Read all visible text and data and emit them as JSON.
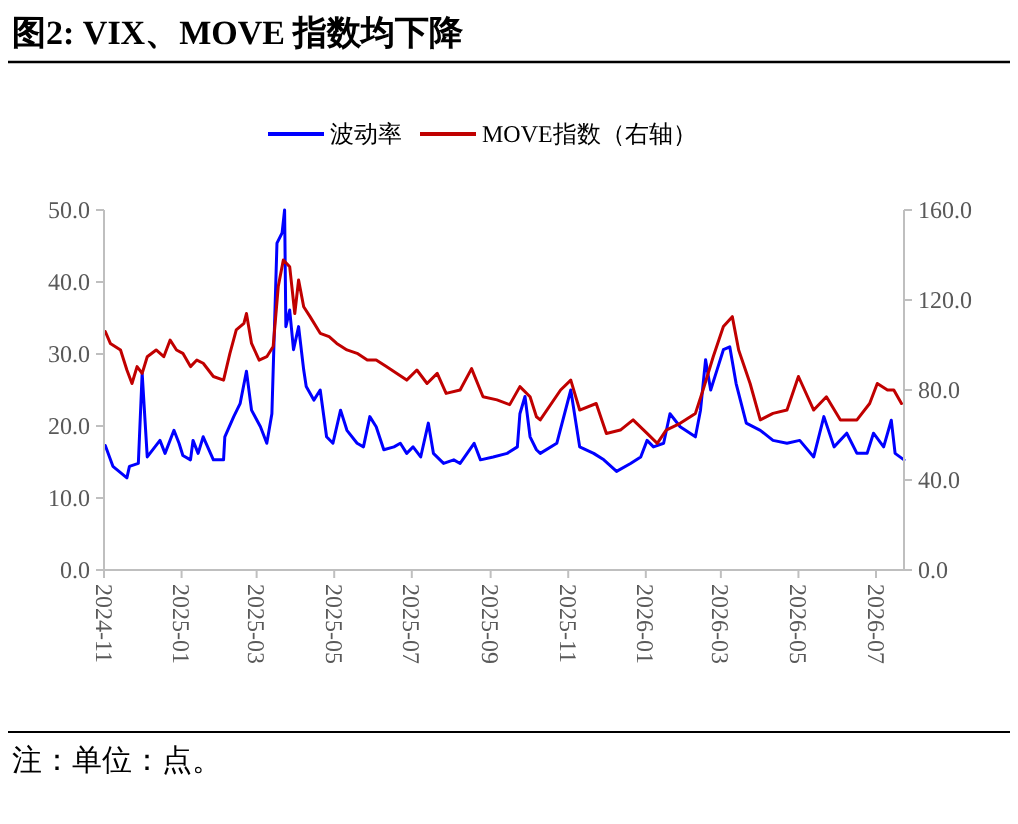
{
  "chart_data": {
    "type": "line",
    "title": "图2:  VIX、MOVE 指数均下降",
    "annotations": [
      "注：单位：点。"
    ],
    "legend": "top",
    "grid": false,
    "marker": "none",
    "line_style": "solid",
    "xlim": [
      "2024-11-01",
      "2026-07-23"
    ],
    "xticks": [
      {
        "value": "2024-11-01",
        "label": "2024-11"
      },
      {
        "value": "2025-01-01",
        "label": "2025-01"
      },
      {
        "value": "2025-03-01",
        "label": "2025-03"
      },
      {
        "value": "2025-05-01",
        "label": "2025-05"
      },
      {
        "value": "2025-07-01",
        "label": "2025-07"
      },
      {
        "value": "2025-09-01",
        "label": "2025-09"
      },
      {
        "value": "2025-11-01",
        "label": "2025-11"
      },
      {
        "value": "2026-01-01",
        "label": "2026-01"
      },
      {
        "value": "2026-03-01",
        "label": "2026-03"
      },
      {
        "value": "2026-05-01",
        "label": "2026-05"
      },
      {
        "value": "2026-07-01",
        "label": "2026-07"
      }
    ],
    "ylim": [
      0,
      50
    ],
    "yticks": [
      {
        "value": 0,
        "label": "0.0"
      },
      {
        "value": 10,
        "label": "10.0"
      },
      {
        "value": 20,
        "label": "20.0"
      },
      {
        "value": 30,
        "label": "30.0"
      },
      {
        "value": 40,
        "label": "40.0"
      },
      {
        "value": 50,
        "label": "50.0"
      }
    ],
    "y2lim": [
      0,
      160
    ],
    "y2ticks": [
      {
        "value": 0,
        "label": "0.0"
      },
      {
        "value": 40,
        "label": "40.0"
      },
      {
        "value": 80,
        "label": "80.0"
      },
      {
        "value": 120,
        "label": "120.0"
      },
      {
        "value": 160,
        "label": "160.0"
      }
    ],
    "series": [
      {
        "name": "波动率",
        "color": "#0000ff",
        "x": [
          "2024-11-02",
          "2024-11-08",
          "2024-11-19",
          "2024-11-21",
          "2024-11-28",
          "2024-12-01",
          "2024-12-05",
          "2024-12-15",
          "2024-12-19",
          "2024-12-26",
          "2024-12-30",
          "2025-01-02",
          "2025-01-08",
          "2025-01-10",
          "2025-01-14",
          "2025-01-18",
          "2025-01-26",
          "2025-02-03",
          "2025-02-04",
          "2025-02-11",
          "2025-02-16",
          "2025-02-21",
          "2025-02-25",
          "2025-03-04",
          "2025-03-09",
          "2025-03-13",
          "2025-03-17",
          "2025-03-21",
          "2025-03-23",
          "2025-03-24",
          "2025-03-27",
          "2025-03-30",
          "2025-04-03",
          "2025-04-07",
          "2025-04-09",
          "2025-04-15",
          "2025-04-20",
          "2025-04-25",
          "2025-04-30",
          "2025-05-06",
          "2025-05-11",
          "2025-05-19",
          "2025-05-24",
          "2025-05-29",
          "2025-06-03",
          "2025-06-09",
          "2025-06-17",
          "2025-06-22",
          "2025-06-27",
          "2025-07-02",
          "2025-07-08",
          "2025-07-14",
          "2025-07-18",
          "2025-07-26",
          "2025-08-03",
          "2025-08-08",
          "2025-08-19",
          "2025-08-24",
          "2025-09-03",
          "2025-09-14",
          "2025-09-22",
          "2025-09-24",
          "2025-09-28",
          "2025-10-02",
          "2025-10-07",
          "2025-10-10",
          "2025-10-23",
          "2025-11-03",
          "2025-11-10",
          "2025-11-21",
          "2025-11-29",
          "2025-12-09",
          "2025-12-20",
          "2025-12-28",
          "2026-01-02",
          "2026-01-07",
          "2026-01-15",
          "2026-01-20",
          "2026-01-28",
          "2026-02-09",
          "2026-02-13",
          "2026-02-17",
          "2026-02-21",
          "2026-02-26",
          "2026-03-03",
          "2026-03-08",
          "2026-03-13",
          "2026-03-21",
          "2026-04-01",
          "2026-04-11",
          "2026-04-22",
          "2026-05-02",
          "2026-05-13",
          "2026-05-21",
          "2026-05-29",
          "2026-06-08",
          "2026-06-16",
          "2026-06-24",
          "2026-06-29",
          "2026-07-07",
          "2026-07-13",
          "2026-07-16",
          "2026-07-23"
        ],
        "values": [
          17.3,
          14.4,
          12.8,
          14.4,
          14.8,
          27.3,
          15.7,
          18,
          16.2,
          19.4,
          17.6,
          15.9,
          15.3,
          18,
          16.2,
          18.5,
          15.3,
          15.3,
          18.5,
          21.3,
          23.1,
          27.6,
          22.2,
          19.9,
          17.6,
          21.7,
          45.4,
          46.8,
          50,
          33.8,
          36.1,
          30.6,
          33.8,
          27.8,
          25.5,
          23.6,
          25,
          18.5,
          17.6,
          22.2,
          19.4,
          17.6,
          17.1,
          21.3,
          19.9,
          16.7,
          17.1,
          17.6,
          16.2,
          17.1,
          15.7,
          20.4,
          16.2,
          14.8,
          15.3,
          14.8,
          17.6,
          15.3,
          15.7,
          16.2,
          17.1,
          21.7,
          24.1,
          18.5,
          16.7,
          16.2,
          17.6,
          25,
          17.1,
          16.2,
          15.3,
          13.7,
          14.8,
          15.7,
          18,
          17.1,
          17.6,
          21.7,
          19.9,
          18.5,
          22.2,
          29.2,
          25,
          27.8,
          30.6,
          31,
          25.9,
          20.4,
          19.4,
          18,
          17.6,
          18,
          15.7,
          21.3,
          17.1,
          19,
          16.2,
          16.2,
          19,
          17.1,
          20.8,
          16.2,
          15.3
        ]
      },
      {
        "name": "MOVE指数（右轴）",
        "color": "#c00000",
        "axis": "y2",
        "x": [
          "2024-11-02",
          "2024-11-06",
          "2024-11-14",
          "2024-11-19",
          "2024-11-23",
          "2024-11-27",
          "2024-12-01",
          "2024-12-05",
          "2024-12-12",
          "2024-12-18",
          "2024-12-23",
          "2024-12-28",
          "2025-01-02",
          "2025-01-08",
          "2025-01-13",
          "2025-01-18",
          "2025-01-26",
          "2025-02-03",
          "2025-02-08",
          "2025-02-13",
          "2025-02-19",
          "2025-02-21",
          "2025-02-25",
          "2025-03-03",
          "2025-03-09",
          "2025-03-14",
          "2025-03-18",
          "2025-03-22",
          "2025-03-27",
          "2025-03-31",
          "2025-04-03",
          "2025-04-07",
          "2025-04-12",
          "2025-04-20",
          "2025-04-27",
          "2025-05-03",
          "2025-05-11",
          "2025-05-19",
          "2025-05-27",
          "2025-06-03",
          "2025-06-11",
          "2025-06-19",
          "2025-06-27",
          "2025-07-05",
          "2025-07-13",
          "2025-07-21",
          "2025-07-28",
          "2025-08-08",
          "2025-08-17",
          "2025-08-26",
          "2025-09-06",
          "2025-09-16",
          "2025-09-24",
          "2025-10-02",
          "2025-10-07",
          "2025-10-10",
          "2025-10-26",
          "2025-11-03",
          "2025-11-10",
          "2025-11-23",
          "2025-12-01",
          "2025-12-12",
          "2025-12-22",
          "2026-01-02",
          "2026-01-10",
          "2026-01-17",
          "2026-01-28",
          "2026-02-09",
          "2026-02-15",
          "2026-02-23",
          "2026-03-03",
          "2026-03-10",
          "2026-03-15",
          "2026-03-24",
          "2026-04-01",
          "2026-04-11",
          "2026-04-22",
          "2026-05-01",
          "2026-05-13",
          "2026-05-23",
          "2026-06-03",
          "2026-06-16",
          "2026-06-26",
          "2026-07-02",
          "2026-07-10",
          "2026-07-15",
          "2026-07-21"
        ],
        "values": [
          106,
          100.7,
          97.8,
          88.9,
          82.9,
          90.4,
          87.4,
          94.8,
          97.8,
          94.8,
          102.2,
          97.8,
          96.3,
          90.4,
          93.3,
          91.9,
          86,
          84.4,
          96.3,
          106.7,
          109.6,
          114,
          100.7,
          93.3,
          94.8,
          99.3,
          126,
          137.8,
          134.8,
          114,
          128.9,
          117,
          112.6,
          105.2,
          103.7,
          100.7,
          97.8,
          96.3,
          93.3,
          93.3,
          90.4,
          87.4,
          84.4,
          88.9,
          82.9,
          87.4,
          78.5,
          80,
          89.5,
          77,
          75.6,
          73.5,
          81.5,
          77,
          68.1,
          66.7,
          80,
          84.4,
          71.1,
          74,
          60.7,
          62.2,
          66.7,
          60.7,
          56.3,
          62.2,
          65.2,
          69.6,
          80,
          94.8,
          108.2,
          112.6,
          97.8,
          82.9,
          66.7,
          69.6,
          71.1,
          86,
          71.1,
          77,
          66.7,
          66.7,
          74,
          82.9,
          80,
          80,
          74
        ]
      }
    ]
  }
}
